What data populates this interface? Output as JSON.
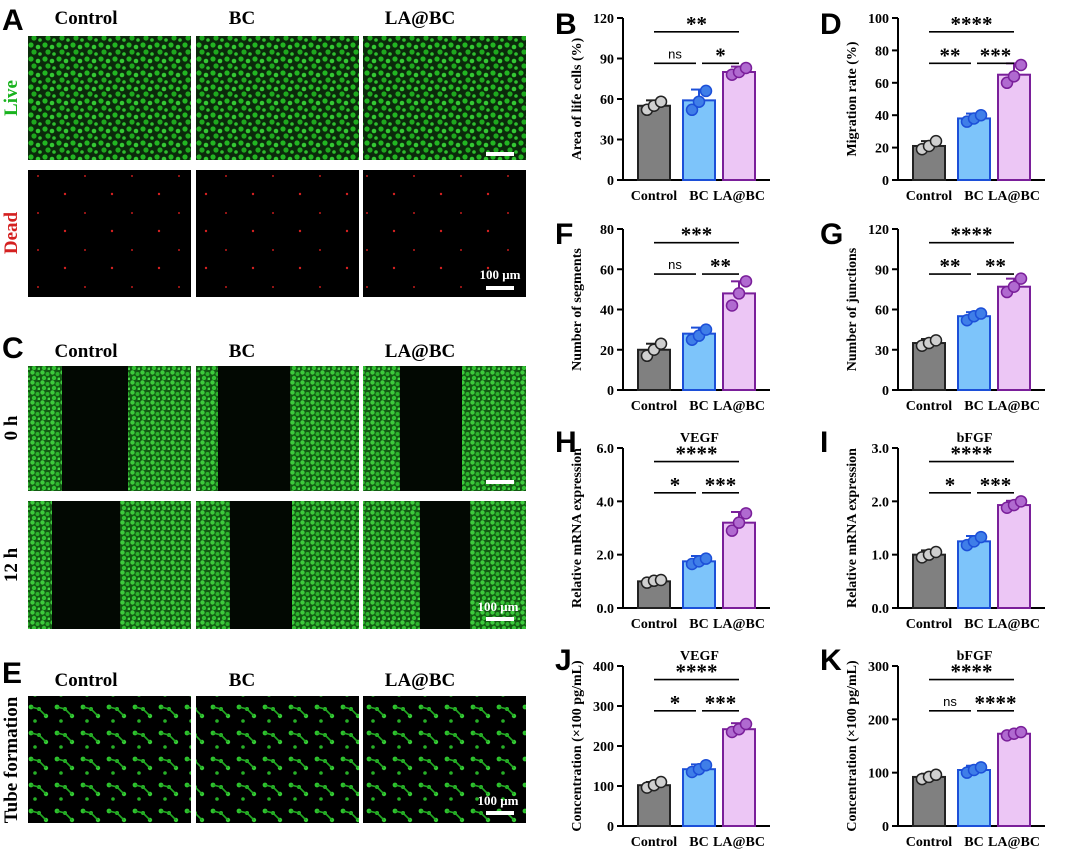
{
  "panel_letters": {
    "A": "A",
    "B": "B",
    "C": "C",
    "D": "D",
    "E": "E",
    "F": "F",
    "G": "G",
    "H": "H",
    "I": "I",
    "J": "J",
    "K": "K"
  },
  "image_panels": {
    "A": {
      "columns": [
        "Control",
        "BC",
        "LA@BC"
      ],
      "rows": [
        "Live",
        "Dead"
      ],
      "scale": "100 μm",
      "live_color": "#19b31e",
      "dead_color": "#d42020"
    },
    "C": {
      "columns": [
        "Control",
        "BC",
        "LA@BC"
      ],
      "rows": [
        "0 h",
        "12 h"
      ],
      "scale": "100 μm"
    },
    "E": {
      "columns": [
        "Control",
        "BC",
        "LA@BC"
      ],
      "row_label": "Tube formation",
      "scale": "100 μm"
    }
  },
  "group_colors": {
    "Control": "#808080",
    "BC": "#7dc4fa",
    "LA@BC": "#ecc6f5"
  },
  "chart_data": [
    {
      "id": "B",
      "type": "bar",
      "categories": [
        "Control",
        "BC",
        "LA@BC"
      ],
      "ylabel": "Area of life cells (%)",
      "ylim": [
        0,
        120
      ],
      "yticks": [
        0,
        30,
        60,
        90,
        120
      ],
      "series": [
        {
          "values": [
            55,
            59,
            80
          ]
        }
      ],
      "errors": [
        4,
        8,
        4
      ],
      "points": [
        [
          52,
          55,
          58
        ],
        [
          52,
          58,
          66
        ],
        [
          78,
          80,
          83
        ]
      ],
      "sig": [
        {
          "from": 0,
          "to": 1,
          "label": "ns"
        },
        {
          "from": 1,
          "to": 2,
          "label": "*"
        },
        {
          "from": 0,
          "to": 2,
          "label": "**"
        }
      ]
    },
    {
      "id": "D",
      "type": "bar",
      "categories": [
        "Control",
        "BC",
        "LA@BC"
      ],
      "ylabel": "Migration rate (%)",
      "ylim": [
        0,
        100
      ],
      "yticks": [
        0,
        20,
        40,
        60,
        80,
        100
      ],
      "series": [
        {
          "values": [
            21,
            38,
            65
          ]
        }
      ],
      "errors": [
        3,
        3,
        7
      ],
      "points": [
        [
          19,
          21,
          24
        ],
        [
          36,
          38,
          40
        ],
        [
          60,
          64,
          71
        ]
      ],
      "sig": [
        {
          "from": 0,
          "to": 1,
          "label": "**"
        },
        {
          "from": 1,
          "to": 2,
          "label": "***"
        },
        {
          "from": 0,
          "to": 2,
          "label": "****"
        }
      ]
    },
    {
      "id": "F",
      "type": "bar",
      "categories": [
        "Control",
        "BC",
        "LA@BC"
      ],
      "ylabel": "Number of segments",
      "ylim": [
        0,
        80
      ],
      "yticks": [
        0,
        20,
        40,
        60,
        80
      ],
      "series": [
        {
          "values": [
            20,
            28,
            48
          ]
        }
      ],
      "errors": [
        3,
        3,
        6
      ],
      "points": [
        [
          17,
          20,
          23
        ],
        [
          25,
          27,
          30
        ],
        [
          42,
          48,
          54
        ]
      ],
      "sig": [
        {
          "from": 0,
          "to": 1,
          "label": "ns"
        },
        {
          "from": 1,
          "to": 2,
          "label": "**"
        },
        {
          "from": 0,
          "to": 2,
          "label": "***"
        }
      ]
    },
    {
      "id": "G",
      "type": "bar",
      "categories": [
        "Control",
        "BC",
        "LA@BC"
      ],
      "ylabel": "Number of junctions",
      "ylim": [
        0,
        120
      ],
      "yticks": [
        0,
        30,
        60,
        90,
        120
      ],
      "series": [
        {
          "values": [
            35,
            55,
            77
          ]
        }
      ],
      "errors": [
        3,
        3,
        6
      ],
      "points": [
        [
          33,
          35,
          37
        ],
        [
          52,
          55,
          57
        ],
        [
          73,
          77,
          83
        ]
      ],
      "sig": [
        {
          "from": 0,
          "to": 1,
          "label": "**"
        },
        {
          "from": 1,
          "to": 2,
          "label": "**"
        },
        {
          "from": 0,
          "to": 2,
          "label": "****"
        }
      ]
    },
    {
      "id": "H",
      "type": "bar",
      "title": "VEGF",
      "categories": [
        "Control",
        "BC",
        "LA@BC"
      ],
      "ylabel": "Relative mRNA expression",
      "ylim": [
        0,
        6
      ],
      "yticks": [
        "0.0",
        "2.0",
        "4.0",
        "6.0"
      ],
      "series": [
        {
          "values": [
            1.0,
            1.75,
            3.2
          ]
        }
      ],
      "errors": [
        0.08,
        0.2,
        0.4
      ],
      "points": [
        [
          0.95,
          1.02,
          1.05
        ],
        [
          1.65,
          1.75,
          1.85
        ],
        [
          2.9,
          3.2,
          3.55
        ]
      ],
      "sig": [
        {
          "from": 0,
          "to": 1,
          "label": "*"
        },
        {
          "from": 1,
          "to": 2,
          "label": "***"
        },
        {
          "from": 0,
          "to": 2,
          "label": "****"
        }
      ]
    },
    {
      "id": "I",
      "type": "bar",
      "title": "bFGF",
      "categories": [
        "Control",
        "BC",
        "LA@BC"
      ],
      "ylabel": "Relative mRNA expression",
      "ylim": [
        0,
        3
      ],
      "yticks": [
        "0.0",
        "1.0",
        "2.0",
        "3.0"
      ],
      "series": [
        {
          "values": [
            1.0,
            1.25,
            1.93
          ]
        }
      ],
      "errors": [
        0.08,
        0.1,
        0.08
      ],
      "points": [
        [
          0.95,
          1.0,
          1.05
        ],
        [
          1.18,
          1.25,
          1.33
        ],
        [
          1.88,
          1.93,
          2.0
        ]
      ],
      "sig": [
        {
          "from": 0,
          "to": 1,
          "label": "*"
        },
        {
          "from": 1,
          "to": 2,
          "label": "***"
        },
        {
          "from": 0,
          "to": 2,
          "label": "****"
        }
      ]
    },
    {
      "id": "J",
      "type": "bar",
      "title": "VEGF",
      "categories": [
        "Control",
        "BC",
        "LA@BC"
      ],
      "ylabel": "Concentration (×100 pg/mL)",
      "ylim": [
        0,
        400
      ],
      "yticks": [
        0,
        100,
        200,
        300,
        400
      ],
      "series": [
        {
          "values": [
            102,
            142,
            242
          ]
        }
      ],
      "errors": [
        8,
        12,
        15
      ],
      "points": [
        [
          96,
          102,
          110
        ],
        [
          135,
          142,
          152
        ],
        [
          235,
          242,
          255
        ]
      ],
      "sig": [
        {
          "from": 0,
          "to": 1,
          "label": "*"
        },
        {
          "from": 1,
          "to": 2,
          "label": "***"
        },
        {
          "from": 0,
          "to": 2,
          "label": "****"
        }
      ]
    },
    {
      "id": "K",
      "type": "bar",
      "title": "bFGF",
      "categories": [
        "Control",
        "BC",
        "LA@BC"
      ],
      "ylabel": "Concentration (×100 pg/mL)",
      "ylim": [
        0,
        300
      ],
      "yticks": [
        0,
        100,
        200,
        300
      ],
      "series": [
        {
          "values": [
            92,
            105,
            173
          ]
        }
      ],
      "errors": [
        6,
        8,
        4
      ],
      "points": [
        [
          88,
          92,
          96
        ],
        [
          100,
          105,
          110
        ],
        [
          170,
          173,
          176
        ]
      ],
      "sig": [
        {
          "from": 0,
          "to": 1,
          "label": "ns"
        },
        {
          "from": 1,
          "to": 2,
          "label": "****"
        },
        {
          "from": 0,
          "to": 2,
          "label": "****"
        }
      ]
    }
  ]
}
